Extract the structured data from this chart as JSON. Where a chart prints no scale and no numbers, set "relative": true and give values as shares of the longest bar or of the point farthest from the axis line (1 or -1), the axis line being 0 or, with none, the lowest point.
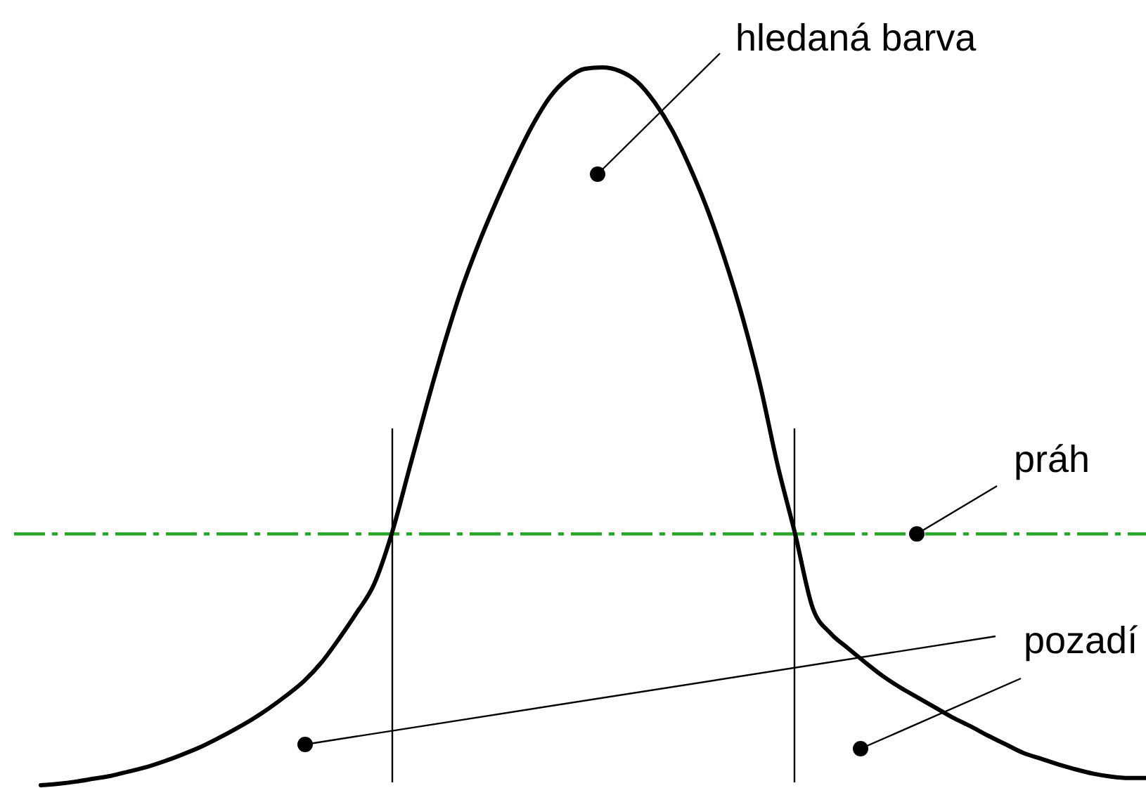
{
  "chart_data": {
    "type": "line",
    "relative": true,
    "categories": [
      null,
      null,
      null,
      null,
      null,
      null,
      null,
      null,
      null,
      null,
      null,
      null,
      null,
      null,
      null,
      null,
      null,
      null,
      null,
      null,
      null,
      null,
      null,
      null,
      null,
      null,
      null,
      null,
      null,
      null,
      null,
      null,
      null,
      null,
      null,
      null,
      null,
      null,
      null,
      null,
      null,
      null,
      null,
      null,
      null,
      null,
      null,
      null,
      null,
      null,
      null,
      null,
      null,
      null,
      null,
      null,
      null,
      null,
      null,
      null,
      null,
      null,
      null,
      null
    ],
    "series": [
      {
        "color": "#000000",
        "values": [
          0,
          0.002,
          0.005,
          0.009,
          0.013,
          0.019,
          0.025,
          0.033,
          0.042,
          0.052,
          0.064,
          0.077,
          0.091,
          0.107,
          0.125,
          0.145,
          0.171,
          0.204,
          0.24,
          0.28,
          0.35,
          0.44,
          0.53,
          0.615,
          0.692,
          0.757,
          0.815,
          0.869,
          0.918,
          0.958,
          0.984,
          0.998,
          1,
          0.995,
          0.98,
          0.951,
          0.912,
          0.861,
          0.802,
          0.732,
          0.652,
          0.558,
          0.446,
          0.35,
          0.247,
          0.212,
          0.191,
          0.171,
          0.152,
          0.136,
          0.122,
          0.108,
          0.094,
          0.082,
          0.069,
          0.057,
          0.045,
          0.037,
          0.029,
          0.022,
          0.016,
          0.012,
          0.01,
          0.01
        ]
      }
    ],
    "ref_lines": [
      {
        "axis": "y",
        "value": 0.35,
        "label": "práh",
        "color": "#22aa22",
        "line_style": "dashed"
      }
    ],
    "annotations": [
      "hledaná barva",
      "pozadí"
    ]
  }
}
